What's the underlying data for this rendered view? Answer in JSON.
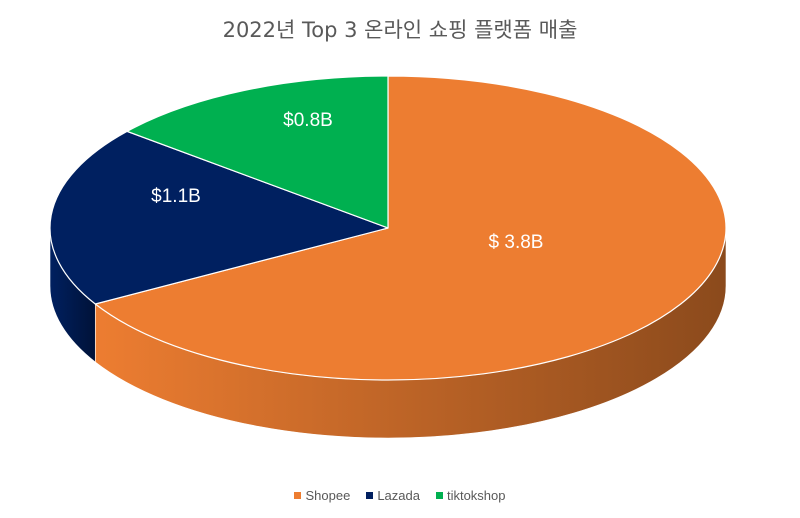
{
  "chart_data": {
    "type": "pie",
    "title": "2022년 Top 3 온라인 쇼핑 플랫폼 매출",
    "categories": [
      "Shopee",
      "Lazada",
      "tiktokshop"
    ],
    "values": [
      3.8,
      1.1,
      0.8
    ],
    "data_labels": [
      "$ 3.8B",
      "$1.1B",
      "$0.8B"
    ],
    "colors": [
      "#ED7D31",
      "#002060",
      "#00B050"
    ],
    "side_colors": [
      "#8B4A1C",
      "#001238",
      "#006830"
    ],
    "legend_position": "bottom",
    "three_d": true
  }
}
